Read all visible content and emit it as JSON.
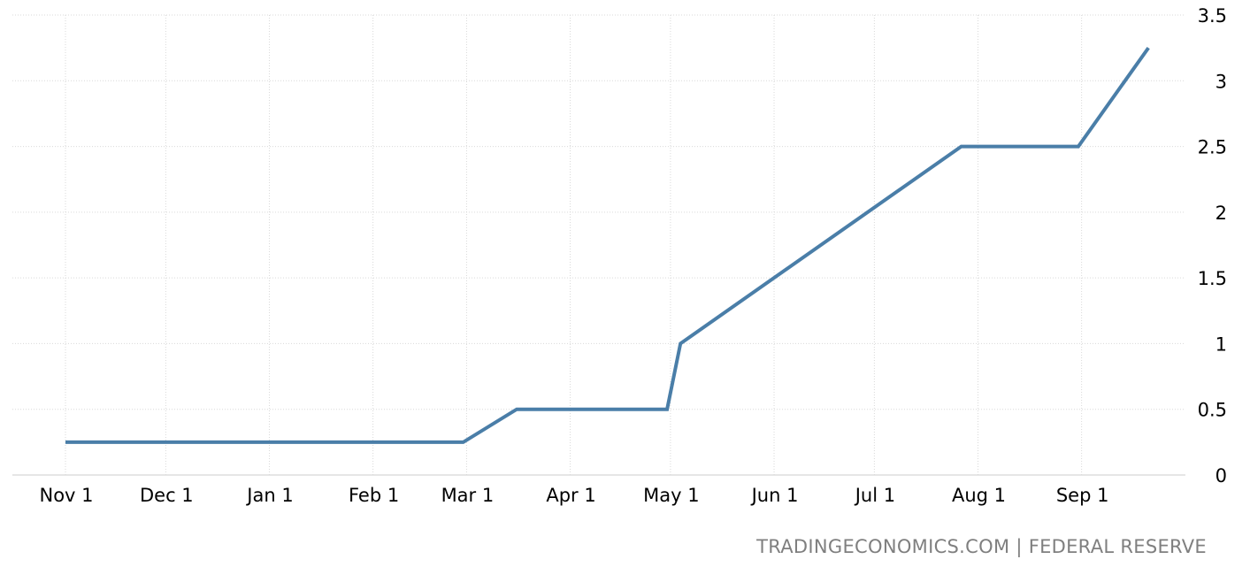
{
  "chart_data": {
    "type": "line",
    "title": "",
    "xlabel": "",
    "ylabel": "",
    "y_axis_position": "right",
    "ylim": [
      0,
      3.5
    ],
    "y_ticks": [
      "0",
      "0.5",
      "1",
      "1.5",
      "2",
      "2.5",
      "3",
      "3.5"
    ],
    "x_ticks": [
      {
        "label": "Nov 1",
        "date": "2021-11-01"
      },
      {
        "label": "Dec 1",
        "date": "2021-12-01"
      },
      {
        "label": "Jan 1",
        "date": "2022-01-01"
      },
      {
        "label": "Feb 1",
        "date": "2022-02-01"
      },
      {
        "label": "Mar 1",
        "date": "2022-03-01"
      },
      {
        "label": "Apr 1",
        "date": "2022-04-01"
      },
      {
        "label": "May 1",
        "date": "2022-05-01"
      },
      {
        "label": "Jun 1",
        "date": "2022-06-01"
      },
      {
        "label": "Jul 1",
        "date": "2022-07-01"
      },
      {
        "label": "Aug 1",
        "date": "2022-08-01"
      },
      {
        "label": "Sep 1",
        "date": "2022-09-01"
      }
    ],
    "xlim": [
      "2021-11-01",
      "2022-10-01"
    ],
    "grid": true,
    "series": [
      {
        "color": "#4a7ea8",
        "points": [
          {
            "x": "2021-11-01",
            "y": 0.25
          },
          {
            "x": "2022-02-28",
            "y": 0.25
          },
          {
            "x": "2022-03-16",
            "y": 0.5
          },
          {
            "x": "2022-04-30",
            "y": 0.5
          },
          {
            "x": "2022-05-04",
            "y": 1.0
          },
          {
            "x": "2022-06-15",
            "y": 1.75
          },
          {
            "x": "2022-07-27",
            "y": 2.5
          },
          {
            "x": "2022-08-31",
            "y": 2.5
          },
          {
            "x": "2022-09-21",
            "y": 3.25
          }
        ]
      }
    ]
  },
  "footer": {
    "source": "TRADINGECONOMICS.COM | FEDERAL RESERVE"
  }
}
